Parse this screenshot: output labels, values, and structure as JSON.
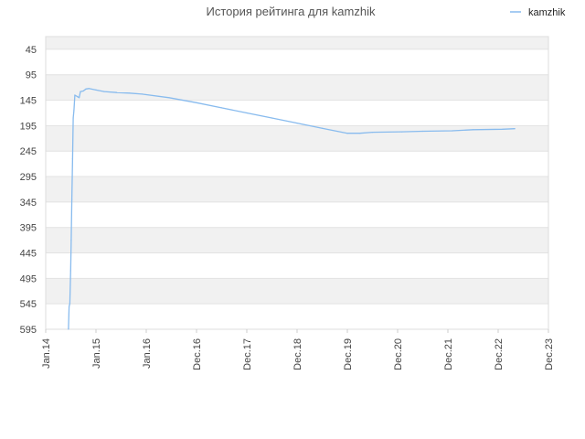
{
  "chart_data": {
    "type": "line",
    "title": "История рейтинга для kamzhik",
    "xlabel": "",
    "ylabel": "",
    "legend_position": "top-right",
    "y_inverted": true,
    "ylim": [
      595,
      20
    ],
    "y_ticks": [
      45,
      95,
      145,
      195,
      245,
      295,
      345,
      395,
      445,
      495,
      545,
      595
    ],
    "x_ticks": [
      "Jan.14",
      "Jan.15",
      "Jan.16",
      "Dec.16",
      "Dec.17",
      "Dec.18",
      "Dec.19",
      "Dec.20",
      "Dec.21",
      "Dec.22",
      "Dec.23"
    ],
    "grid": true,
    "series": [
      {
        "name": "kamzhik",
        "color": "#88bbee",
        "points": [
          [
            "2014-06-15",
            595
          ],
          [
            "2014-06-20",
            550
          ],
          [
            "2014-06-25",
            545
          ],
          [
            "2014-07-01",
            480
          ],
          [
            "2014-07-05",
            420
          ],
          [
            "2014-07-10",
            340
          ],
          [
            "2014-07-15",
            260
          ],
          [
            "2014-07-20",
            180
          ],
          [
            "2014-07-25",
            165
          ],
          [
            "2014-08-01",
            135
          ],
          [
            "2014-08-20",
            138
          ],
          [
            "2014-09-01",
            140
          ],
          [
            "2014-09-10",
            128
          ],
          [
            "2014-10-01",
            127
          ],
          [
            "2014-10-20",
            123
          ],
          [
            "2014-11-10",
            122
          ],
          [
            "2015-01-01",
            125
          ],
          [
            "2015-03-01",
            128
          ],
          [
            "2015-06-01",
            130
          ],
          [
            "2015-09-01",
            131
          ],
          [
            "2015-12-01",
            133
          ],
          [
            "2016-06-01",
            140
          ],
          [
            "2016-12-01",
            150
          ],
          [
            "2017-06-01",
            160
          ],
          [
            "2017-12-01",
            170
          ],
          [
            "2018-06-01",
            180
          ],
          [
            "2018-12-01",
            190
          ],
          [
            "2019-06-01",
            200
          ],
          [
            "2019-12-01",
            210
          ],
          [
            "2020-03-01",
            210
          ],
          [
            "2020-06-01",
            208
          ],
          [
            "2021-01-01",
            207
          ],
          [
            "2021-06-01",
            206
          ],
          [
            "2022-01-01",
            205
          ],
          [
            "2022-06-01",
            203
          ],
          [
            "2023-01-01",
            202
          ],
          [
            "2023-04-01",
            201
          ]
        ]
      }
    ]
  }
}
